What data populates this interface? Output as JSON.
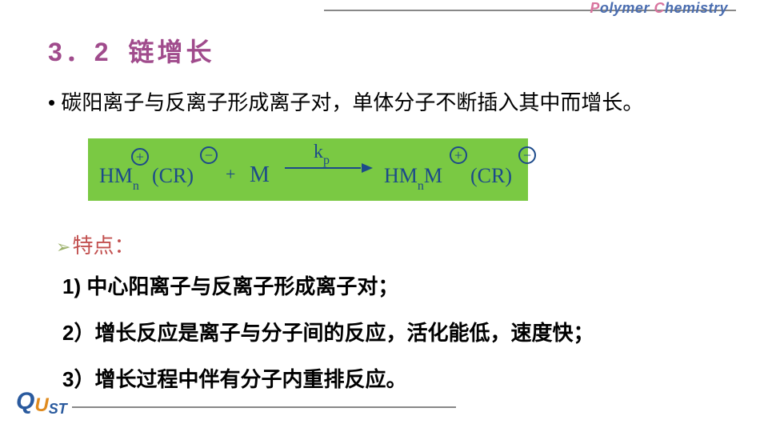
{
  "header": {
    "brand_p": "P",
    "brand_olymer": "olymer ",
    "brand_c": "C",
    "brand_hemistry": "hemistry",
    "line_color": "#888888"
  },
  "section": {
    "number": "3．2",
    "title": "链增长",
    "title_color": "#a04b8c",
    "title_fontsize": 32
  },
  "intro": {
    "bullet": "•",
    "text": "碳阳离子与反离子形成离子对，单体分子不断插入其中而增长。",
    "fontsize": 26
  },
  "reaction": {
    "bg_color": "#7ac943",
    "text_color": "#1c4a8a",
    "reactant_hm": "HM",
    "reactant_n": "n",
    "reactant_cr": "(CR)",
    "plus_symbol": "+",
    "minus_symbol": "−",
    "op_plus": "+",
    "monomer": "M",
    "rate_k": "k",
    "rate_p": "p",
    "product_hm": "HM",
    "product_n": "n",
    "product_m": "M",
    "product_cr": "(CR)"
  },
  "features": {
    "marker": "➢",
    "label": "特点：",
    "label_color": "#c2504f",
    "points": [
      "1) 中心阳离子与反离子形成离子对；",
      "2）增长反应是离子与分子间的反应，活化能低，速度快；",
      "3）增长过程中伴有分子内重排反应。"
    ]
  },
  "footer": {
    "logo_q": "Q",
    "logo_u": "U",
    "logo_st": "ST",
    "line_color": "#888888"
  },
  "colors": {
    "background": "#ffffff",
    "text": "#000000",
    "brand_accent": "#d8749e",
    "brand_main": "#4a6db0"
  }
}
